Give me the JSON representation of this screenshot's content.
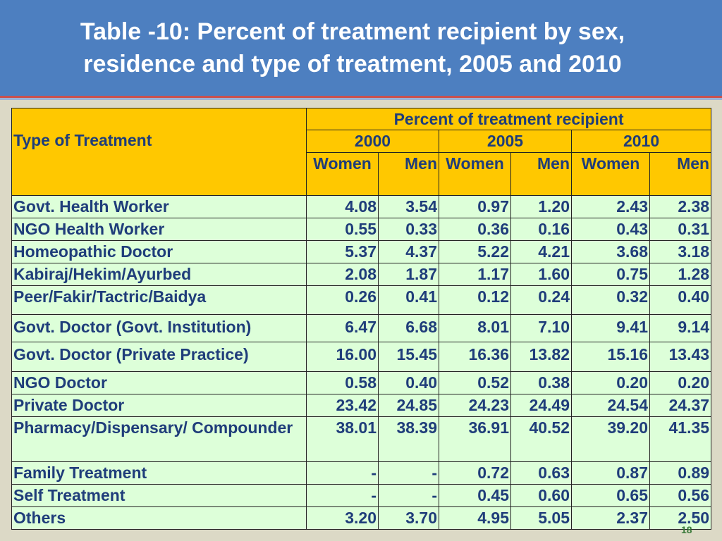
{
  "title": {
    "line1": "Table -10: Percent of treatment recipient by sex,",
    "line2": "residence and type of treatment, 2005 and 2010"
  },
  "table": {
    "type_header": "Type of Treatment",
    "group_header": "Percent of treatment recipient",
    "years": [
      "2000",
      "2005",
      "2010"
    ],
    "sexes": [
      "Women",
      "Men",
      "Women",
      "Men",
      "Women",
      "Men"
    ],
    "rows": [
      {
        "label": "Govt. Health Worker",
        "values": [
          "4.08",
          "3.54",
          "0.97",
          "1.20",
          "2.43",
          "2.38"
        ]
      },
      {
        "label": "NGO Health Worker",
        "values": [
          "0.55",
          "0.33",
          "0.36",
          "0.16",
          "0.43",
          "0.31"
        ]
      },
      {
        "label": "Homeopathic Doctor",
        "values": [
          "5.37",
          "4.37",
          "5.22",
          "4.21",
          "3.68",
          "3.18"
        ]
      },
      {
        "label": "Kabiraj/Hekim/Ayurbed",
        "values": [
          "2.08",
          "1.87",
          "1.17",
          "1.60",
          "0.75",
          "1.28"
        ]
      },
      {
        "label": "Peer/Fakir/Tactric/Baidya",
        "values": [
          "0.26",
          "0.41",
          "0.12",
          "0.24",
          "0.32",
          "0.40"
        ]
      },
      {
        "label": "Govt. Doctor (Govt. Institution)",
        "values": [
          "6.47",
          "6.68",
          "8.01",
          "7.10",
          "9.41",
          "9.14"
        ]
      },
      {
        "label": "Govt. Doctor (Private Practice)",
        "values": [
          "16.00",
          "15.45",
          "16.36",
          "13.82",
          "15.16",
          "13.43"
        ]
      },
      {
        "label": "NGO Doctor",
        "values": [
          "0.58",
          "0.40",
          "0.52",
          "0.38",
          "0.20",
          "0.20"
        ]
      },
      {
        "label": "Private Doctor",
        "values": [
          "23.42",
          "24.85",
          "24.23",
          "24.49",
          "24.54",
          "24.37"
        ]
      },
      {
        "label": "Pharmacy/Dispensary/ Compounder",
        "values": [
          "38.01",
          "38.39",
          "36.91",
          "40.52",
          "39.20",
          "41.35"
        ]
      },
      {
        "label": "Family Treatment",
        "values": [
          "-",
          "-",
          "0.72",
          "0.63",
          "0.87",
          "0.89"
        ]
      },
      {
        "label": "Self Treatment",
        "values": [
          "-",
          "-",
          "0.45",
          "0.60",
          "0.65",
          "0.56"
        ]
      },
      {
        "label": "Others",
        "values": [
          "3.20",
          "3.70",
          "4.95",
          "5.05",
          "2.37",
          "2.50"
        ]
      }
    ]
  },
  "page_number": "18"
}
